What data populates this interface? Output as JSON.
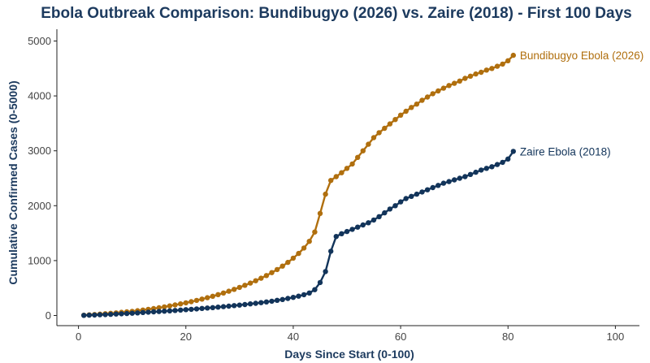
{
  "chart_data": {
    "type": "line",
    "title": "Ebola Outbreak Comparison: Bundibugyo (2026) vs. Zaire (2018) - First 100 Days",
    "xlabel": "Days Since Start (0-100)",
    "ylabel": "Cumulative Confirmed Cases (0-5000)",
    "xlim": [
      0,
      100
    ],
    "ylim": [
      0,
      5000
    ],
    "xticks": [
      0,
      20,
      40,
      60,
      80,
      100
    ],
    "yticks": [
      0,
      1000,
      2000,
      3000,
      4000,
      5000
    ],
    "grid": false,
    "legend": "none",
    "colors": {
      "title": "#1c3a5e",
      "axis": "#1c3a5e",
      "tick": "#444444"
    },
    "x": [
      1,
      2,
      3,
      4,
      5,
      6,
      7,
      8,
      9,
      10,
      11,
      12,
      13,
      14,
      15,
      16,
      17,
      18,
      19,
      20,
      21,
      22,
      23,
      24,
      25,
      26,
      27,
      28,
      29,
      30,
      31,
      32,
      33,
      34,
      35,
      36,
      37,
      38,
      39,
      40,
      41,
      42,
      43,
      44,
      45,
      46,
      47,
      48,
      49,
      50,
      51,
      52,
      53,
      54,
      55,
      56,
      57,
      58,
      59,
      60,
      61,
      62,
      63,
      64,
      65,
      66,
      67,
      68,
      69,
      70,
      71,
      72,
      73,
      74,
      75,
      76,
      77,
      78,
      79,
      80,
      81
    ],
    "series": [
      {
        "name": "Bundibugyo Ebola (2026)",
        "color": "#b06f0e",
        "values": [
          5,
          12,
          18,
          25,
          32,
          40,
          48,
          57,
          66,
          76,
          87,
          99,
          112,
          126,
          141,
          157,
          174,
          192,
          211,
          231,
          252,
          275,
          299,
          324,
          351,
          380,
          410,
          442,
          476,
          512,
          550,
          590,
          633,
          679,
          728,
          781,
          838,
          900,
          968,
          1045,
          1130,
          1230,
          1350,
          1520,
          1860,
          2210,
          2460,
          2530,
          2600,
          2680,
          2760,
          2880,
          3000,
          3120,
          3240,
          3330,
          3410,
          3490,
          3570,
          3650,
          3720,
          3790,
          3850,
          3920,
          3980,
          4040,
          4090,
          4140,
          4190,
          4230,
          4270,
          4320,
          4360,
          4400,
          4430,
          4470,
          4500,
          4540,
          4580,
          4640,
          4740
        ]
      },
      {
        "name": "Zaire Ebola (2018)",
        "color": "#12345a",
        "values": [
          3,
          6,
          9,
          13,
          17,
          21,
          26,
          31,
          36,
          42,
          48,
          54,
          60,
          66,
          72,
          78,
          85,
          92,
          99,
          106,
          113,
          120,
          128,
          136,
          144,
          152,
          161,
          170,
          180,
          190,
          200,
          211,
          222,
          234,
          247,
          261,
          276,
          292,
          310,
          330,
          352,
          378,
          410,
          470,
          600,
          800,
          1170,
          1440,
          1490,
          1530,
          1570,
          1610,
          1650,
          1690,
          1740,
          1800,
          1870,
          1940,
          2000,
          2070,
          2130,
          2170,
          2210,
          2250,
          2290,
          2330,
          2370,
          2410,
          2440,
          2470,
          2500,
          2530,
          2570,
          2610,
          2650,
          2680,
          2710,
          2750,
          2790,
          2850,
          2990
        ]
      }
    ]
  }
}
